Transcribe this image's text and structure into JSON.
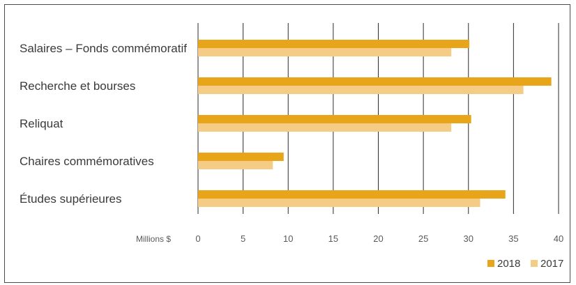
{
  "chart_data": {
    "type": "bar",
    "orientation": "horizontal",
    "categories": [
      "Salaires – Fonds commémoratif",
      "Recherche et bourses",
      "Reliquat",
      "Chaires commémoratives",
      "Études supérieures"
    ],
    "series": [
      {
        "name": "2018",
        "color": "#e8a519",
        "values": [
          30.1,
          39.2,
          30.3,
          9.5,
          34.1
        ]
      },
      {
        "name": "2017",
        "color": "#f5cc85",
        "values": [
          28.1,
          36.1,
          28.1,
          8.3,
          31.3
        ]
      }
    ],
    "xlabel": "Millions $",
    "xlim": [
      0,
      40
    ],
    "xticks": [
      0,
      5,
      10,
      15,
      20,
      25,
      30,
      35,
      40
    ],
    "grid": true,
    "legend_position": "bottom-right"
  }
}
